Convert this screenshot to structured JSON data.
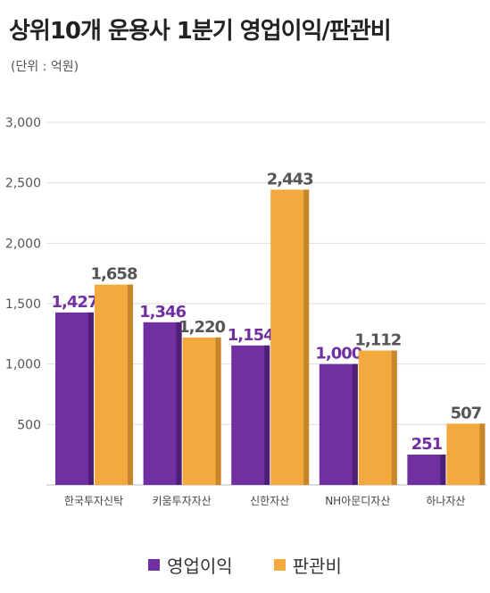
{
  "title": "상위10개 운용사 1분기 영업이익/판관비",
  "unit_label": "(단위 : 억원)",
  "colors": {
    "operating_profit": "#7030a0",
    "operating_profit_side": "#4f1f75",
    "sga": "#f4a93e",
    "sga_side": "#c8862a",
    "op_label": "#7030a0",
    "sga_label": "#555555",
    "grid": "#dddddd",
    "tick": "#555555",
    "category": "#444444"
  },
  "chart_data": {
    "type": "bar",
    "categories": [
      "한국투자신탁",
      "키움투자자산",
      "신한자산",
      "NH아문디자산",
      "하나자산"
    ],
    "series": [
      {
        "name": "영업이익",
        "values": [
          1427,
          1346,
          1154,
          1000,
          251
        ],
        "labels": [
          "1,427",
          "1,346",
          "1,154",
          "1,000",
          "251"
        ]
      },
      {
        "name": "판관비",
        "values": [
          1658,
          1220,
          2443,
          1112,
          507
        ],
        "labels": [
          "1,658",
          "1,220",
          "2,443",
          "1,112",
          "507"
        ]
      }
    ],
    "ylim": [
      0,
      3000
    ],
    "yticks": [
      0,
      500,
      1000,
      1500,
      2000,
      2500,
      3000
    ],
    "ytick_labels": [
      "",
      "500",
      "1,000",
      "1,500",
      "2,000",
      "2,500",
      "3,000"
    ],
    "grid": true,
    "legend_position": "bottom"
  }
}
